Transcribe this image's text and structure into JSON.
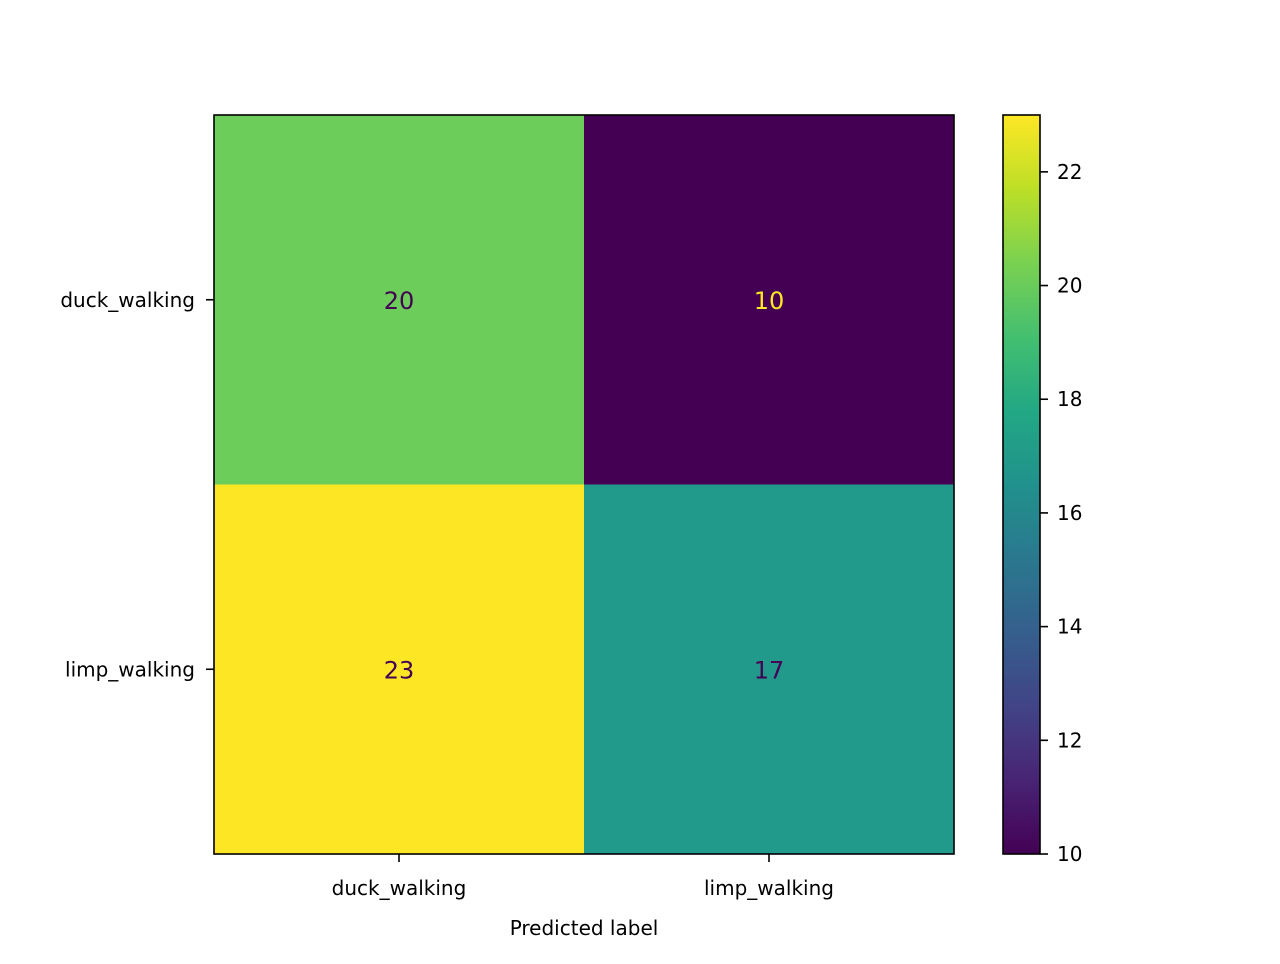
{
  "chart_data": {
    "type": "heatmap",
    "title": "",
    "xlabel": "Predicted label",
    "ylabel": "",
    "x_categories": [
      "duck_walking",
      "limp_walking"
    ],
    "y_categories": [
      "duck_walking",
      "limp_walking"
    ],
    "values": [
      [
        20,
        10
      ],
      [
        23,
        17
      ]
    ],
    "colormap": "viridis",
    "colorbar": {
      "min": 10,
      "max": 23,
      "ticks": [
        10,
        12,
        14,
        16,
        18,
        20,
        22
      ],
      "tick_labels": [
        "10",
        "12",
        "14",
        "16",
        "18",
        "20",
        "22"
      ]
    },
    "grid": false,
    "cell_colors": [
      [
        "#6ccd5a",
        "#440154"
      ],
      [
        "#fde725",
        "#21998b"
      ]
    ],
    "text_colors": {
      "dark": "#440154",
      "light": "#fde725"
    }
  }
}
